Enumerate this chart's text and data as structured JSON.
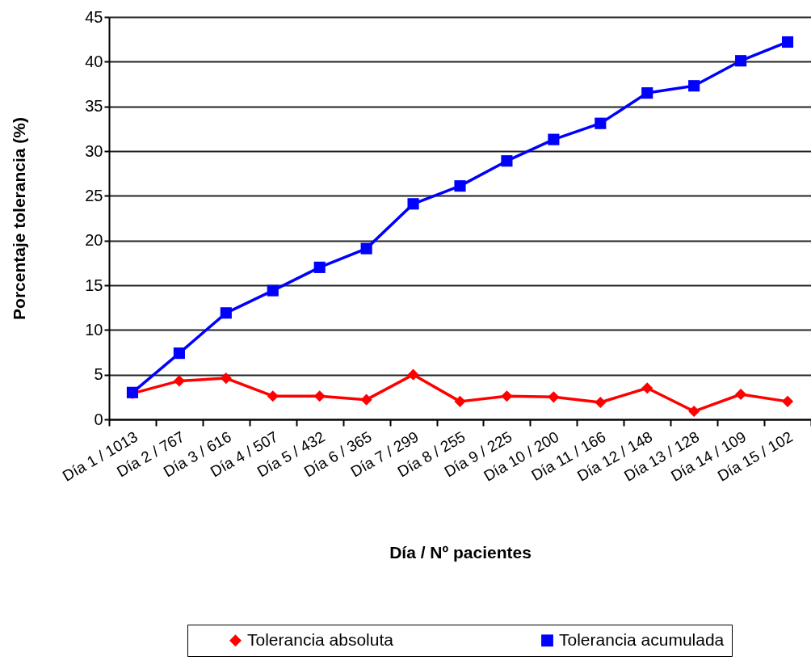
{
  "chart_data": {
    "type": "line",
    "xlabel": "Día / Nº pacientes",
    "ylabel": "Porcentaje tolerancia (%)",
    "categories": [
      "Día 1 / 1013",
      "Día 2 / 767",
      "Día 3 / 616",
      "Día 4 / 507",
      "Día 5 / 432",
      "Día 6 / 365",
      "Día 7 / 299",
      "Día 8 / 255",
      "Día 9 / 225",
      "Día 10 / 200",
      "Día 11 / 166",
      "Día 12 / 148",
      "Día 13 / 128",
      "Día 14 / 109",
      "Día 15 / 102"
    ],
    "ylim": [
      0,
      45
    ],
    "yticks": [
      0,
      5,
      10,
      15,
      20,
      25,
      30,
      35,
      40,
      45
    ],
    "grid": "y",
    "legend": "bottom",
    "line_style": "solid",
    "series": [
      {
        "name": "Tolerancia absoluta",
        "color": "#ff0000",
        "marker": "diamond",
        "values": [
          2.9,
          4.3,
          4.6,
          2.6,
          2.6,
          2.2,
          5.0,
          2.0,
          2.6,
          2.5,
          1.9,
          3.5,
          0.9,
          2.8,
          2.0
        ]
      },
      {
        "name": "Tolerancia acumulada",
        "color": "#0000ff",
        "marker": "square",
        "values": [
          3.0,
          7.4,
          11.9,
          14.4,
          17.0,
          19.1,
          24.1,
          26.1,
          28.9,
          31.3,
          33.1,
          36.5,
          37.3,
          40.1,
          42.2
        ]
      }
    ]
  }
}
